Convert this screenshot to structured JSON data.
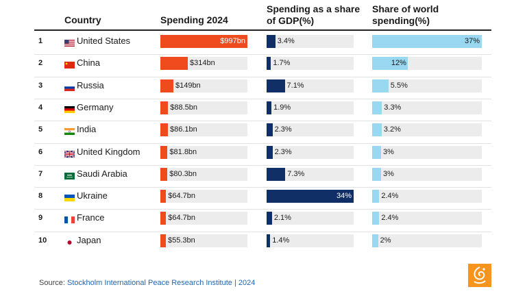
{
  "headers": {
    "country": "Country",
    "spending": "Spending 2024",
    "gdp": "Spending as a share of GDP(%)",
    "world": "Share of world spending(%)"
  },
  "source": {
    "prefix": "Source:",
    "name": "Stockholm International Peace Research Institute | 2024"
  },
  "colors": {
    "spending": "#f04a1f",
    "gdp": "#0f2f66",
    "world": "#9ad7f0",
    "track": "#ececec"
  },
  "chart_data": {
    "type": "table",
    "columns": [
      "Country",
      "Spending 2024",
      "Spending as a share of GDP(%)",
      "Share of world spending(%)"
    ],
    "rows": [
      {
        "rank": "1",
        "country": "United States",
        "flag": "us",
        "spending": 997,
        "spending_label": "$997bn",
        "gdp": 3.4,
        "gdp_label": "3.4%",
        "world": 37,
        "world_label": "37%"
      },
      {
        "rank": "2",
        "country": "China",
        "flag": "cn",
        "spending": 314,
        "spending_label": "$314bn",
        "gdp": 1.7,
        "gdp_label": "1.7%",
        "world": 12,
        "world_label": "12%"
      },
      {
        "rank": "3",
        "country": "Russia",
        "flag": "ru",
        "spending": 149,
        "spending_label": "$149bn",
        "gdp": 7.1,
        "gdp_label": "7.1%",
        "world": 5.5,
        "world_label": "5.5%"
      },
      {
        "rank": "4",
        "country": "Germany",
        "flag": "de",
        "spending": 88.5,
        "spending_label": "$88.5bn",
        "gdp": 1.9,
        "gdp_label": "1.9%",
        "world": 3.3,
        "world_label": "3.3%"
      },
      {
        "rank": "5",
        "country": "India",
        "flag": "in",
        "spending": 86.1,
        "spending_label": "$86.1bn",
        "gdp": 2.3,
        "gdp_label": "2.3%",
        "world": 3.2,
        "world_label": "3.2%"
      },
      {
        "rank": "6",
        "country": "United Kingdom",
        "flag": "gb",
        "spending": 81.8,
        "spending_label": "$81.8bn",
        "gdp": 2.3,
        "gdp_label": "2.3%",
        "world": 3,
        "world_label": "3%"
      },
      {
        "rank": "7",
        "country": "Saudi Arabia",
        "flag": "sa",
        "spending": 80.3,
        "spending_label": "$80.3bn",
        "gdp": 7.3,
        "gdp_label": "7.3%",
        "world": 3,
        "world_label": "3%"
      },
      {
        "rank": "8",
        "country": "Ukraine",
        "flag": "ua",
        "spending": 64.7,
        "spending_label": "$64.7bn",
        "gdp": 34,
        "gdp_label": "34%",
        "world": 2.4,
        "world_label": "2.4%"
      },
      {
        "rank": "9",
        "country": "France",
        "flag": "fr",
        "spending": 64.7,
        "spending_label": "$64.7bn",
        "gdp": 2.1,
        "gdp_label": "2.1%",
        "world": 2.4,
        "world_label": "2.4%"
      },
      {
        "rank": "10",
        "country": "Japan",
        "flag": "jp",
        "spending": 55.3,
        "spending_label": "$55.3bn",
        "gdp": 1.4,
        "gdp_label": "1.4%",
        "world": 2,
        "world_label": "2%"
      }
    ],
    "scales": {
      "spending_max": 997,
      "gdp_max": 34,
      "world_max": 37
    }
  }
}
